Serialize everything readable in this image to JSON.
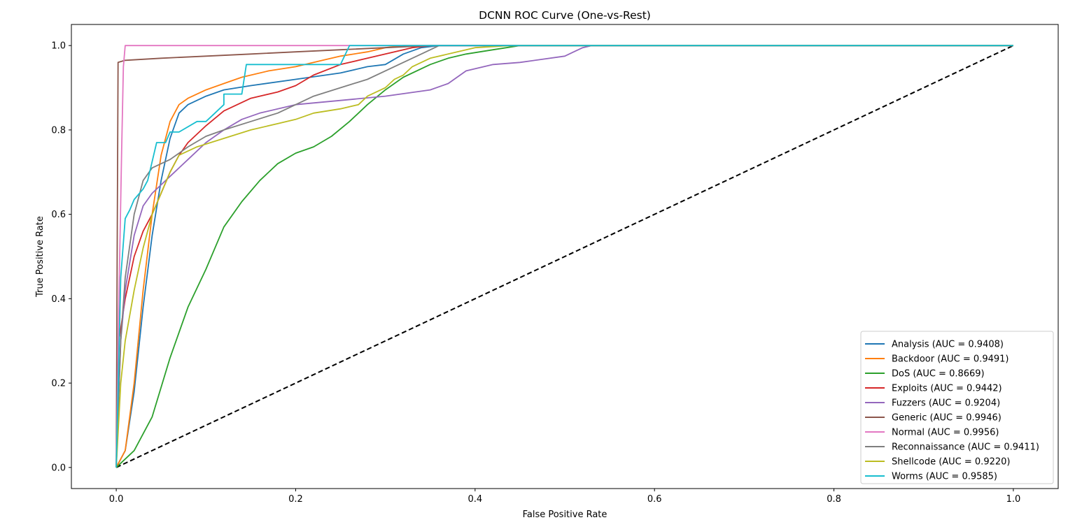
{
  "chart_data": {
    "type": "line",
    "title": "DCNN ROC Curve (One-vs-Rest)",
    "xlabel": "False Positive Rate",
    "ylabel": "True Positive Rate",
    "xlim": [
      -0.05,
      1.05
    ],
    "ylim": [
      -0.05,
      1.05
    ],
    "x_ticks": [
      "0.0",
      "0.2",
      "0.4",
      "0.6",
      "0.8",
      "1.0"
    ],
    "y_ticks": [
      "0.0",
      "0.2",
      "0.4",
      "0.6",
      "0.8",
      "1.0"
    ],
    "grid": false,
    "legend_position": "lower right",
    "series": [
      {
        "name": "Analysis (AUC = 0.9408)",
        "color": "#1f77b4",
        "points": [
          [
            0,
            0
          ],
          [
            0.01,
            0.04
          ],
          [
            0.02,
            0.18
          ],
          [
            0.03,
            0.38
          ],
          [
            0.04,
            0.55
          ],
          [
            0.05,
            0.68
          ],
          [
            0.06,
            0.78
          ],
          [
            0.07,
            0.84
          ],
          [
            0.08,
            0.86
          ],
          [
            0.1,
            0.88
          ],
          [
            0.12,
            0.895
          ],
          [
            0.15,
            0.905
          ],
          [
            0.2,
            0.92
          ],
          [
            0.25,
            0.935
          ],
          [
            0.28,
            0.95
          ],
          [
            0.3,
            0.955
          ],
          [
            0.32,
            0.98
          ],
          [
            0.34,
            0.995
          ],
          [
            0.36,
            1.0
          ],
          [
            1.0,
            1.0
          ]
        ]
      },
      {
        "name": "Backdoor (AUC = 0.9491)",
        "color": "#ff7f0e",
        "points": [
          [
            0,
            0
          ],
          [
            0.01,
            0.04
          ],
          [
            0.02,
            0.2
          ],
          [
            0.03,
            0.42
          ],
          [
            0.04,
            0.6
          ],
          [
            0.05,
            0.74
          ],
          [
            0.06,
            0.82
          ],
          [
            0.07,
            0.86
          ],
          [
            0.08,
            0.875
          ],
          [
            0.1,
            0.895
          ],
          [
            0.12,
            0.91
          ],
          [
            0.14,
            0.925
          ],
          [
            0.17,
            0.94
          ],
          [
            0.2,
            0.95
          ],
          [
            0.23,
            0.965
          ],
          [
            0.25,
            0.975
          ],
          [
            0.28,
            0.985
          ],
          [
            0.3,
            0.995
          ],
          [
            0.32,
            1.0
          ],
          [
            1.0,
            1.0
          ]
        ]
      },
      {
        "name": "DoS (AUC = 0.8669)",
        "color": "#2ca02c",
        "points": [
          [
            0,
            0
          ],
          [
            0.02,
            0.04
          ],
          [
            0.04,
            0.12
          ],
          [
            0.06,
            0.26
          ],
          [
            0.08,
            0.38
          ],
          [
            0.1,
            0.47
          ],
          [
            0.12,
            0.57
          ],
          [
            0.14,
            0.63
          ],
          [
            0.16,
            0.68
          ],
          [
            0.18,
            0.72
          ],
          [
            0.2,
            0.745
          ],
          [
            0.22,
            0.76
          ],
          [
            0.24,
            0.785
          ],
          [
            0.26,
            0.82
          ],
          [
            0.28,
            0.86
          ],
          [
            0.3,
            0.895
          ],
          [
            0.32,
            0.925
          ],
          [
            0.35,
            0.955
          ],
          [
            0.37,
            0.97
          ],
          [
            0.39,
            0.98
          ],
          [
            0.42,
            0.99
          ],
          [
            0.45,
            1.0
          ],
          [
            1.0,
            1.0
          ]
        ]
      },
      {
        "name": "Exploits (AUC = 0.9442)",
        "color": "#d62728",
        "points": [
          [
            0,
            0
          ],
          [
            0.003,
            0.3
          ],
          [
            0.01,
            0.4
          ],
          [
            0.02,
            0.5
          ],
          [
            0.03,
            0.56
          ],
          [
            0.04,
            0.6
          ],
          [
            0.05,
            0.65
          ],
          [
            0.06,
            0.7
          ],
          [
            0.07,
            0.74
          ],
          [
            0.08,
            0.77
          ],
          [
            0.1,
            0.81
          ],
          [
            0.12,
            0.845
          ],
          [
            0.15,
            0.875
          ],
          [
            0.18,
            0.89
          ],
          [
            0.2,
            0.905
          ],
          [
            0.22,
            0.93
          ],
          [
            0.25,
            0.955
          ],
          [
            0.27,
            0.965
          ],
          [
            0.3,
            0.98
          ],
          [
            0.33,
            0.995
          ],
          [
            0.35,
            1.0
          ],
          [
            1.0,
            1.0
          ]
        ]
      },
      {
        "name": "Fuzzers (AUC = 0.9204)",
        "color": "#9467bd",
        "points": [
          [
            0,
            0
          ],
          [
            0.005,
            0.3
          ],
          [
            0.01,
            0.42
          ],
          [
            0.02,
            0.55
          ],
          [
            0.03,
            0.62
          ],
          [
            0.04,
            0.65
          ],
          [
            0.06,
            0.69
          ],
          [
            0.08,
            0.73
          ],
          [
            0.1,
            0.77
          ],
          [
            0.12,
            0.8
          ],
          [
            0.14,
            0.825
          ],
          [
            0.16,
            0.84
          ],
          [
            0.2,
            0.86
          ],
          [
            0.25,
            0.87
          ],
          [
            0.3,
            0.88
          ],
          [
            0.35,
            0.895
          ],
          [
            0.37,
            0.91
          ],
          [
            0.39,
            0.94
          ],
          [
            0.42,
            0.955
          ],
          [
            0.45,
            0.96
          ],
          [
            0.5,
            0.975
          ],
          [
            0.51,
            0.985
          ],
          [
            0.52,
            0.995
          ],
          [
            0.53,
            1.0
          ],
          [
            1.0,
            1.0
          ]
        ]
      },
      {
        "name": "Generic (AUC = 0.9946)",
        "color": "#8c564b",
        "points": [
          [
            0,
            0
          ],
          [
            0.001,
            0.5
          ],
          [
            0.002,
            0.96
          ],
          [
            0.01,
            0.965
          ],
          [
            0.05,
            0.97
          ],
          [
            0.1,
            0.975
          ],
          [
            0.15,
            0.98
          ],
          [
            0.2,
            0.985
          ],
          [
            0.25,
            0.99
          ],
          [
            0.3,
            0.995
          ],
          [
            0.35,
            1.0
          ],
          [
            1.0,
            1.0
          ]
        ]
      },
      {
        "name": "Normal (AUC = 0.9956)",
        "color": "#e377c2",
        "points": [
          [
            0,
            0
          ],
          [
            0.003,
            0.4
          ],
          [
            0.006,
            0.75
          ],
          [
            0.008,
            0.95
          ],
          [
            0.01,
            1.0
          ],
          [
            1.0,
            1.0
          ]
        ]
      },
      {
        "name": "Reconnaissance (AUC = 0.9411)",
        "color": "#7f7f7f",
        "points": [
          [
            0,
            0
          ],
          [
            0.005,
            0.3
          ],
          [
            0.01,
            0.45
          ],
          [
            0.02,
            0.6
          ],
          [
            0.03,
            0.68
          ],
          [
            0.04,
            0.71
          ],
          [
            0.06,
            0.73
          ],
          [
            0.08,
            0.76
          ],
          [
            0.1,
            0.785
          ],
          [
            0.12,
            0.8
          ],
          [
            0.15,
            0.82
          ],
          [
            0.18,
            0.84
          ],
          [
            0.2,
            0.86
          ],
          [
            0.22,
            0.88
          ],
          [
            0.25,
            0.9
          ],
          [
            0.28,
            0.92
          ],
          [
            0.3,
            0.94
          ],
          [
            0.32,
            0.96
          ],
          [
            0.34,
            0.98
          ],
          [
            0.36,
            1.0
          ],
          [
            1.0,
            1.0
          ]
        ]
      },
      {
        "name": "Shellcode (AUC = 0.9220)",
        "color": "#bcbd22",
        "points": [
          [
            0,
            0
          ],
          [
            0.005,
            0.2
          ],
          [
            0.01,
            0.3
          ],
          [
            0.02,
            0.42
          ],
          [
            0.03,
            0.52
          ],
          [
            0.04,
            0.6
          ],
          [
            0.05,
            0.65
          ],
          [
            0.06,
            0.7
          ],
          [
            0.07,
            0.74
          ],
          [
            0.09,
            0.76
          ],
          [
            0.12,
            0.78
          ],
          [
            0.15,
            0.8
          ],
          [
            0.18,
            0.815
          ],
          [
            0.2,
            0.825
          ],
          [
            0.22,
            0.84
          ],
          [
            0.25,
            0.85
          ],
          [
            0.27,
            0.86
          ],
          [
            0.28,
            0.88
          ],
          [
            0.3,
            0.9
          ],
          [
            0.31,
            0.92
          ],
          [
            0.32,
            0.93
          ],
          [
            0.33,
            0.95
          ],
          [
            0.35,
            0.97
          ],
          [
            0.38,
            0.985
          ],
          [
            0.4,
            0.995
          ],
          [
            0.44,
            1.0
          ],
          [
            1.0,
            1.0
          ]
        ]
      },
      {
        "name": "Worms (AUC = 0.9585)",
        "color": "#17becf",
        "points": [
          [
            0,
            0
          ],
          [
            0.005,
            0.45
          ],
          [
            0.01,
            0.59
          ],
          [
            0.015,
            0.61
          ],
          [
            0.02,
            0.635
          ],
          [
            0.03,
            0.66
          ],
          [
            0.035,
            0.68
          ],
          [
            0.04,
            0.725
          ],
          [
            0.045,
            0.77
          ],
          [
            0.055,
            0.77
          ],
          [
            0.06,
            0.795
          ],
          [
            0.07,
            0.795
          ],
          [
            0.09,
            0.82
          ],
          [
            0.1,
            0.82
          ],
          [
            0.11,
            0.84
          ],
          [
            0.12,
            0.86
          ],
          [
            0.12,
            0.885
          ],
          [
            0.14,
            0.885
          ],
          [
            0.145,
            0.955
          ],
          [
            0.25,
            0.955
          ],
          [
            0.26,
            1.0
          ],
          [
            1.0,
            1.0
          ]
        ]
      }
    ],
    "reference_line": {
      "label": "",
      "color": "#000000",
      "points": [
        [
          0,
          0
        ],
        [
          1,
          1
        ]
      ]
    }
  }
}
